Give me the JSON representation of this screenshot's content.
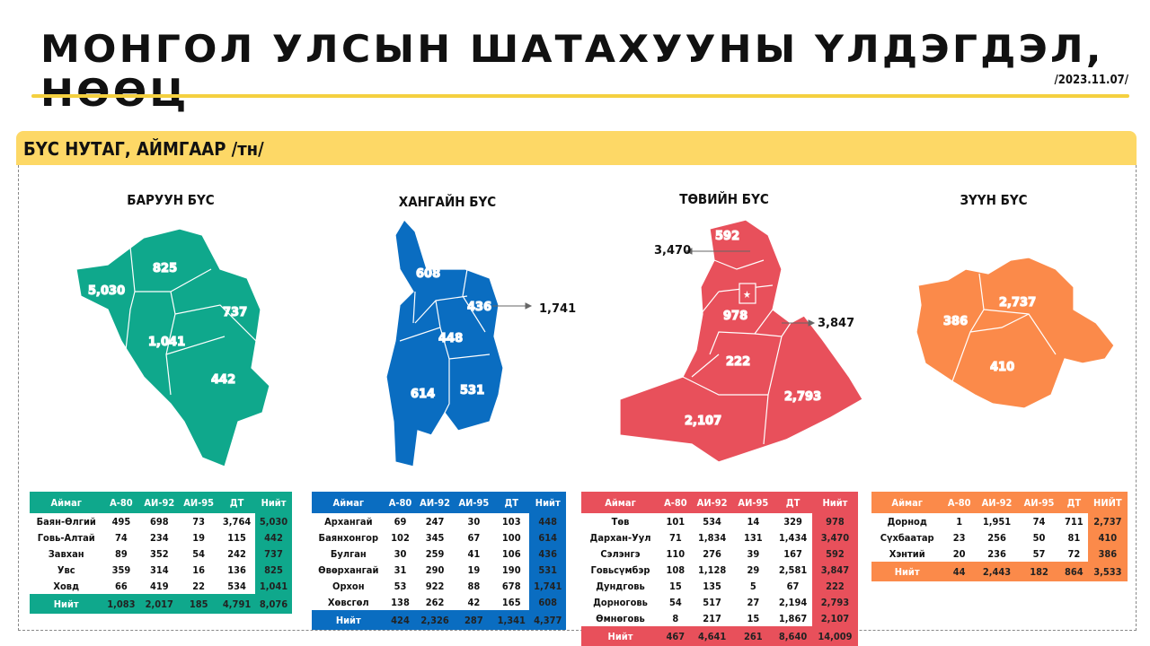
{
  "header": {
    "title": "МОНГОЛ УЛСЫН ШАТАХУУНЫ ҮЛДЭГДЭЛ, НӨӨЦ",
    "date": "/2023.11.07/"
  },
  "section": {
    "title": "БҮС НУТАГ, АЙМГААР /тн/"
  },
  "colors": {
    "west": "#0fa88c",
    "khangai": "#0a6dc1",
    "central": "#e8505b",
    "east": "#fb8a4a",
    "accent": "#fdd866"
  },
  "regions": [
    {
      "key": "west",
      "title": "БАРУУН БҮС",
      "map_labels": [
        "825",
        "5,030",
        "737",
        "1,041",
        "442"
      ],
      "table": {
        "headers": [
          "Аймаг",
          "А-80",
          "АИ-92",
          "АИ-95",
          "ДТ",
          "Нийт"
        ],
        "rows": [
          [
            "Баян-Өлгий",
            "495",
            "698",
            "73",
            "3,764",
            "5,030"
          ],
          [
            "Говь-Алтай",
            "74",
            "234",
            "19",
            "115",
            "442"
          ],
          [
            "Завхан",
            "89",
            "352",
            "54",
            "242",
            "737"
          ],
          [
            "Увс",
            "359",
            "314",
            "16",
            "136",
            "825"
          ],
          [
            "Ховд",
            "66",
            "419",
            "22",
            "534",
            "1,041"
          ]
        ],
        "total": [
          "Нийт",
          "1,083",
          "2,017",
          "185",
          "4,791",
          "8,076"
        ]
      }
    },
    {
      "key": "khangai",
      "title": "ХАНГАЙН БҮС",
      "map_labels": [
        "608",
        "436",
        "448",
        "614",
        "531"
      ],
      "callout": "1,741",
      "table": {
        "headers": [
          "Аймаг",
          "А-80",
          "АИ-92",
          "АИ-95",
          "ДТ",
          "Нийт"
        ],
        "rows": [
          [
            "Архангай",
            "69",
            "247",
            "30",
            "103",
            "448"
          ],
          [
            "Баянхонгор",
            "102",
            "345",
            "67",
            "100",
            "614"
          ],
          [
            "Булган",
            "30",
            "259",
            "41",
            "106",
            "436"
          ],
          [
            "Өвөрхангай",
            "31",
            "290",
            "19",
            "190",
            "531"
          ],
          [
            "Орхон",
            "53",
            "922",
            "88",
            "678",
            "1,741"
          ],
          [
            "Хөвсгөл",
            "138",
            "262",
            "42",
            "165",
            "608"
          ]
        ],
        "total": [
          "Нийт",
          "424",
          "2,326",
          "287",
          "1,341",
          "4,377"
        ]
      }
    },
    {
      "key": "central",
      "title": "ТӨВИЙН БҮС",
      "map_labels": [
        "592",
        "978",
        "222",
        "2,793",
        "2,107"
      ],
      "callout": "3,470",
      "callout2": "3,847",
      "table": {
        "headers": [
          "Аймаг",
          "А-80",
          "АИ-92",
          "АИ-95",
          "ДТ",
          "Нийт"
        ],
        "rows": [
          [
            "Төв",
            "101",
            "534",
            "14",
            "329",
            "978"
          ],
          [
            "Дархан-Уул",
            "71",
            "1,834",
            "131",
            "1,434",
            "3,470"
          ],
          [
            "Сэлэнгэ",
            "110",
            "276",
            "39",
            "167",
            "592"
          ],
          [
            "Говьсүмбэр",
            "108",
            "1,128",
            "29",
            "2,581",
            "3,847"
          ],
          [
            "Дундговь",
            "15",
            "135",
            "5",
            "67",
            "222"
          ],
          [
            "Дорноговь",
            "54",
            "517",
            "27",
            "2,194",
            "2,793"
          ],
          [
            "Өмнөговь",
            "8",
            "217",
            "15",
            "1,867",
            "2,107"
          ]
        ],
        "total": [
          "Нийт",
          "467",
          "4,641",
          "261",
          "8,640",
          "14,009"
        ]
      }
    },
    {
      "key": "east",
      "title": "ЗҮҮН БҮС",
      "map_labels": [
        "386",
        "2,737",
        "410"
      ],
      "table": {
        "headers": [
          "Аймаг",
          "А-80",
          "АИ-92",
          "АИ-95",
          "ДТ",
          "НИЙТ"
        ],
        "rows": [
          [
            "Дорнод",
            "1",
            "1,951",
            "74",
            "711",
            "2,737"
          ],
          [
            "Сүхбаатар",
            "23",
            "256",
            "50",
            "81",
            "410"
          ],
          [
            "Хэнтий",
            "20",
            "236",
            "57",
            "72",
            "386"
          ]
        ],
        "total": [
          "Нийт",
          "44",
          "2,443",
          "182",
          "864",
          "3,533"
        ]
      }
    }
  ]
}
